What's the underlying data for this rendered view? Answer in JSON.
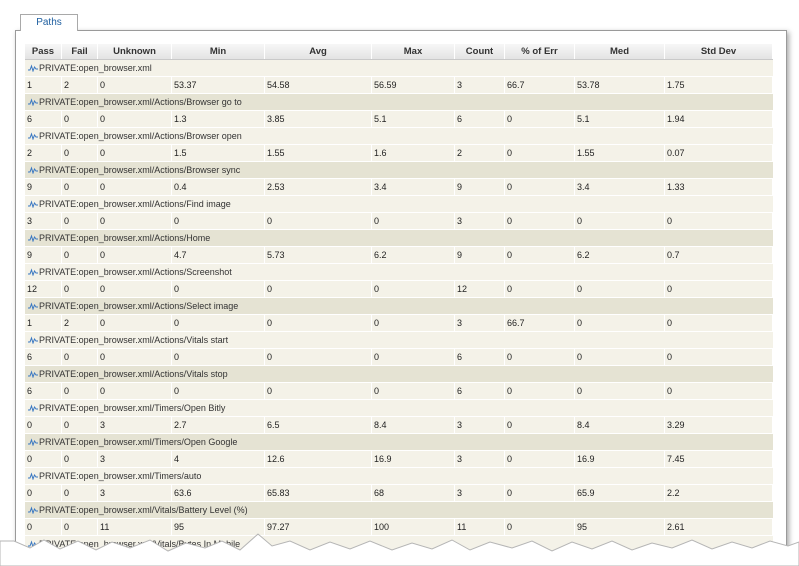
{
  "tab": "Paths",
  "table": {
    "columns": [
      "Pass",
      "Fail",
      "Unknown",
      "Min",
      "Avg",
      "Max",
      "Count",
      "% of Err",
      "Med",
      "Std Dev"
    ],
    "rows": [
      {
        "path": "PRIVATE:open_browser.xml",
        "values": [
          1,
          2,
          0,
          53.37,
          54.58,
          56.59,
          3,
          66.7,
          53.78,
          1.75
        ]
      },
      {
        "path": "PRIVATE:open_browser.xml/Actions/Browser go to",
        "values": [
          6,
          0,
          0,
          1.3,
          3.85,
          5.1,
          6,
          0,
          5.1,
          1.94
        ]
      },
      {
        "path": "PRIVATE:open_browser.xml/Actions/Browser open",
        "values": [
          2,
          0,
          0,
          1.5,
          1.55,
          1.6,
          2,
          0,
          1.55,
          0.07
        ]
      },
      {
        "path": "PRIVATE:open_browser.xml/Actions/Browser sync",
        "values": [
          9,
          0,
          0,
          0.4,
          2.53,
          3.4,
          9,
          0,
          3.4,
          1.33
        ]
      },
      {
        "path": "PRIVATE:open_browser.xml/Actions/Find image",
        "values": [
          3,
          0,
          0,
          0,
          0,
          0,
          3,
          0,
          0,
          0
        ]
      },
      {
        "path": "PRIVATE:open_browser.xml/Actions/Home",
        "values": [
          9,
          0,
          0,
          4.7,
          5.73,
          6.2,
          9,
          0,
          6.2,
          0.7
        ]
      },
      {
        "path": "PRIVATE:open_browser.xml/Actions/Screenshot",
        "values": [
          12,
          0,
          0,
          0,
          0,
          0,
          12,
          0,
          0,
          0
        ]
      },
      {
        "path": "PRIVATE:open_browser.xml/Actions/Select image",
        "values": [
          1,
          2,
          0,
          0,
          0,
          0,
          3,
          66.7,
          0,
          0
        ]
      },
      {
        "path": "PRIVATE:open_browser.xml/Actions/Vitals start",
        "values": [
          6,
          0,
          0,
          0,
          0,
          0,
          6,
          0,
          0,
          0
        ]
      },
      {
        "path": "PRIVATE:open_browser.xml/Actions/Vitals stop",
        "values": [
          6,
          0,
          0,
          0,
          0,
          0,
          6,
          0,
          0,
          0
        ]
      },
      {
        "path": "PRIVATE:open_browser.xml/Timers/Open Bitly",
        "values": [
          0,
          0,
          3,
          2.7,
          6.5,
          8.4,
          3,
          0,
          8.4,
          3.29
        ]
      },
      {
        "path": "PRIVATE:open_browser.xml/Timers/Open Google",
        "values": [
          0,
          0,
          3,
          4,
          12.6,
          16.9,
          3,
          0,
          16.9,
          7.45
        ]
      },
      {
        "path": "PRIVATE:open_browser.xml/Timers/auto",
        "values": [
          0,
          0,
          3,
          63.6,
          65.83,
          68,
          3,
          0,
          65.9,
          2.2
        ]
      },
      {
        "path": "PRIVATE:open_browser.xml/Vitals/Battery Level (%)",
        "values": [
          0,
          0,
          11,
          95,
          97.27,
          100,
          11,
          0,
          95,
          2.61
        ]
      },
      {
        "path": "PRIVATE:open_browser.xml/Vitals/Bytes In Mobile"
      }
    ]
  }
}
